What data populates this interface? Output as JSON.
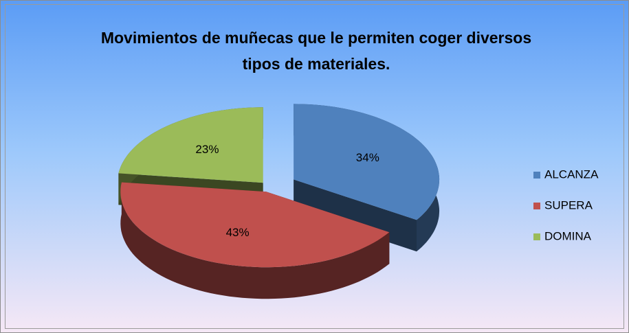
{
  "chart_data": {
    "type": "pie3d",
    "title": "Movimientos de muñecas que le permiten coger diversos tipos de materiales.",
    "categories": [
      "ALCANZA",
      "SUPERA",
      "DOMINA"
    ],
    "values": [
      34,
      43,
      23
    ],
    "value_labels": [
      "34%",
      "43%",
      "23%"
    ],
    "colors": [
      "#4f81bd",
      "#c0504d",
      "#9bbb59"
    ],
    "legend": "right"
  }
}
